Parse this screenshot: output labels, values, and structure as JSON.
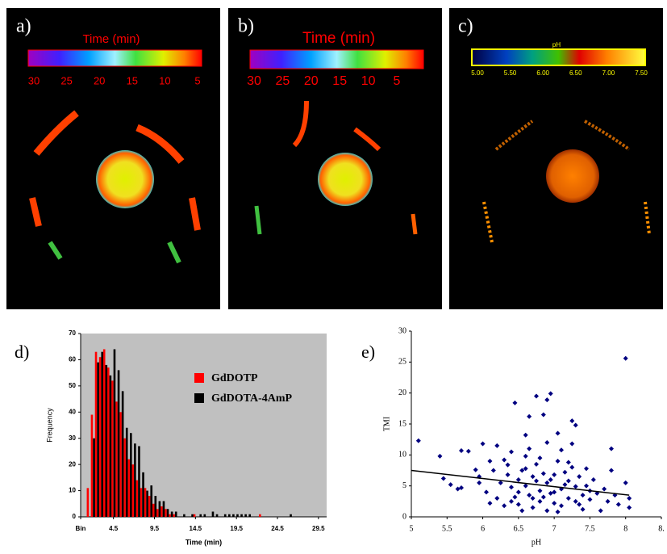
{
  "images": [
    {
      "label": "a)",
      "colorbar_title": "Time (min)",
      "colorbar_ticks": [
        "30",
        "25",
        "20",
        "15",
        "10",
        "5"
      ]
    },
    {
      "label": "b)",
      "colorbar_title": "Time (min)",
      "colorbar_ticks": [
        "30",
        "25",
        "20",
        "15",
        "10",
        "5"
      ]
    },
    {
      "label": "c)",
      "colorbar_title": "pH",
      "colorbar_ticks": [
        "5.00",
        "5.50",
        "6.00",
        "6.50",
        "7.00",
        "7.50"
      ]
    }
  ],
  "chart_data": [
    {
      "type": "bar",
      "panel_label": "d)",
      "xlabel": "Time (min)",
      "ylabel": "Frequency",
      "xlim": [
        0.5,
        30.5
      ],
      "xticks": [
        {
          "value": 0.5,
          "label": "Bin"
        },
        4.5,
        9.5,
        14.5,
        19.5,
        24.5,
        29.5
      ],
      "ylim": [
        0,
        70
      ],
      "yticks": [
        0,
        10,
        20,
        30,
        40,
        50,
        60,
        70
      ],
      "background": "#c0c0c0",
      "series": [
        {
          "name": "GdDOTP",
          "color": "#ff0000",
          "x": [
            1.5,
            2,
            2.5,
            3,
            3.5,
            4,
            4.5,
            5,
            5.5,
            6,
            6.5,
            7,
            7.5,
            8,
            8.5,
            9,
            9.5,
            10,
            10.5,
            11,
            11.5,
            12,
            14.5,
            22.5
          ],
          "values": [
            11,
            39,
            63,
            61,
            64,
            57,
            52,
            44,
            40,
            30,
            22,
            20,
            14,
            11,
            11,
            8,
            5,
            3,
            4,
            3,
            1,
            1,
            1,
            1
          ]
        },
        {
          "name": "GdDOTA-4AmP",
          "color": "#000000",
          "x": [
            2,
            2.5,
            3,
            3.5,
            4,
            4.5,
            5,
            5.5,
            6,
            6.5,
            7,
            7.5,
            8,
            8.5,
            9,
            9.5,
            10,
            10.5,
            11,
            11.5,
            12,
            13,
            14,
            15,
            15.5,
            16.5,
            17,
            18,
            18.5,
            19,
            19.5,
            20,
            20.5,
            21,
            26
          ],
          "values": [
            30,
            59,
            63,
            58,
            54,
            64,
            56,
            48,
            34,
            32,
            28,
            27,
            17,
            10,
            12,
            8,
            6,
            6,
            3,
            2,
            2,
            1,
            1,
            1,
            1,
            2,
            1,
            1,
            1,
            1,
            1,
            1,
            1,
            1,
            1
          ]
        }
      ]
    },
    {
      "type": "scatter",
      "panel_label": "e)",
      "xlabel": "pH",
      "ylabel": "TMI",
      "xlim": [
        5,
        8.5
      ],
      "xticks": [
        5,
        5.5,
        6,
        6.5,
        7,
        7.5,
        8,
        {
          "value": 8.5,
          "label": "8."
        }
      ],
      "ylim": [
        0,
        30
      ],
      "yticks": [
        0,
        5,
        10,
        15,
        20,
        25,
        30
      ],
      "series": [
        {
          "color": "#000080",
          "x": [
            8.0,
            6.95,
            6.75,
            6.45,
            6.9,
            7.25,
            6.65,
            6.85,
            7.3,
            5.1,
            6.0,
            6.2,
            7.05,
            6.6,
            7.8,
            5.4,
            5.8,
            5.7,
            5.95,
            5.55,
            5.65,
            5.7,
            5.45,
            5.9,
            6.1,
            6.15,
            6.3,
            6.35,
            6.4,
            6.45,
            6.5,
            6.5,
            6.55,
            6.6,
            6.6,
            6.65,
            6.7,
            6.7,
            6.75,
            6.8,
            6.8,
            6.85,
            6.9,
            6.9,
            6.95,
            7.0,
            7.0,
            7.05,
            7.1,
            7.1,
            7.15,
            7.2,
            7.2,
            7.25,
            7.3,
            7.3,
            7.35,
            7.4,
            7.4,
            7.45,
            7.5,
            7.55,
            7.6,
            7.65,
            7.7,
            7.75,
            7.8,
            7.85,
            7.9,
            8.0,
            8.05,
            8.05,
            6.2,
            6.25,
            6.3,
            6.35,
            6.4,
            6.05,
            6.1,
            5.95,
            6.5,
            6.55,
            6.6,
            6.7,
            6.75,
            6.8,
            6.85,
            6.95,
            7.0,
            7.05,
            7.15,
            7.2,
            7.35,
            7.45,
            7.5,
            6.4,
            6.65,
            6.9,
            7.1,
            7.25
          ],
          "values": [
            25.6,
            19.9,
            19.5,
            18.4,
            18.9,
            15.5,
            16.2,
            16.5,
            14.8,
            12.3,
            11.8,
            11.5,
            13.5,
            13.2,
            11.0,
            9.8,
            10.6,
            10.7,
            5.5,
            5.2,
            4.5,
            4.7,
            6.2,
            7.6,
            9.0,
            7.5,
            9.2,
            8.4,
            4.8,
            3.2,
            6.0,
            2.0,
            7.5,
            5.0,
            9.8,
            3.5,
            1.5,
            6.5,
            8.5,
            4.2,
            2.5,
            7.0,
            5.5,
            1.0,
            3.8,
            6.8,
            2.2,
            9.0,
            4.5,
            1.8,
            7.2,
            3.0,
            5.8,
            8.0,
            2.5,
            4.9,
            6.5,
            3.5,
            1.2,
            5.0,
            2.8,
            6.0,
            3.8,
            1.0,
            4.5,
            2.5,
            7.5,
            3.5,
            2.0,
            5.5,
            3.0,
            1.5,
            3.0,
            5.5,
            1.8,
            6.8,
            2.5,
            4.0,
            2.2,
            6.5,
            4.0,
            1.0,
            7.8,
            3.0,
            5.8,
            9.5,
            3.2,
            6.0,
            4.0,
            0.8,
            5.2,
            8.8,
            2.0,
            7.8,
            4.2,
            10.5,
            11.0,
            12.0,
            10.8,
            11.8
          ]
        }
      ],
      "trendline": {
        "x": [
          5,
          8.05
        ],
        "values": [
          7.5,
          3.5
        ]
      }
    }
  ]
}
